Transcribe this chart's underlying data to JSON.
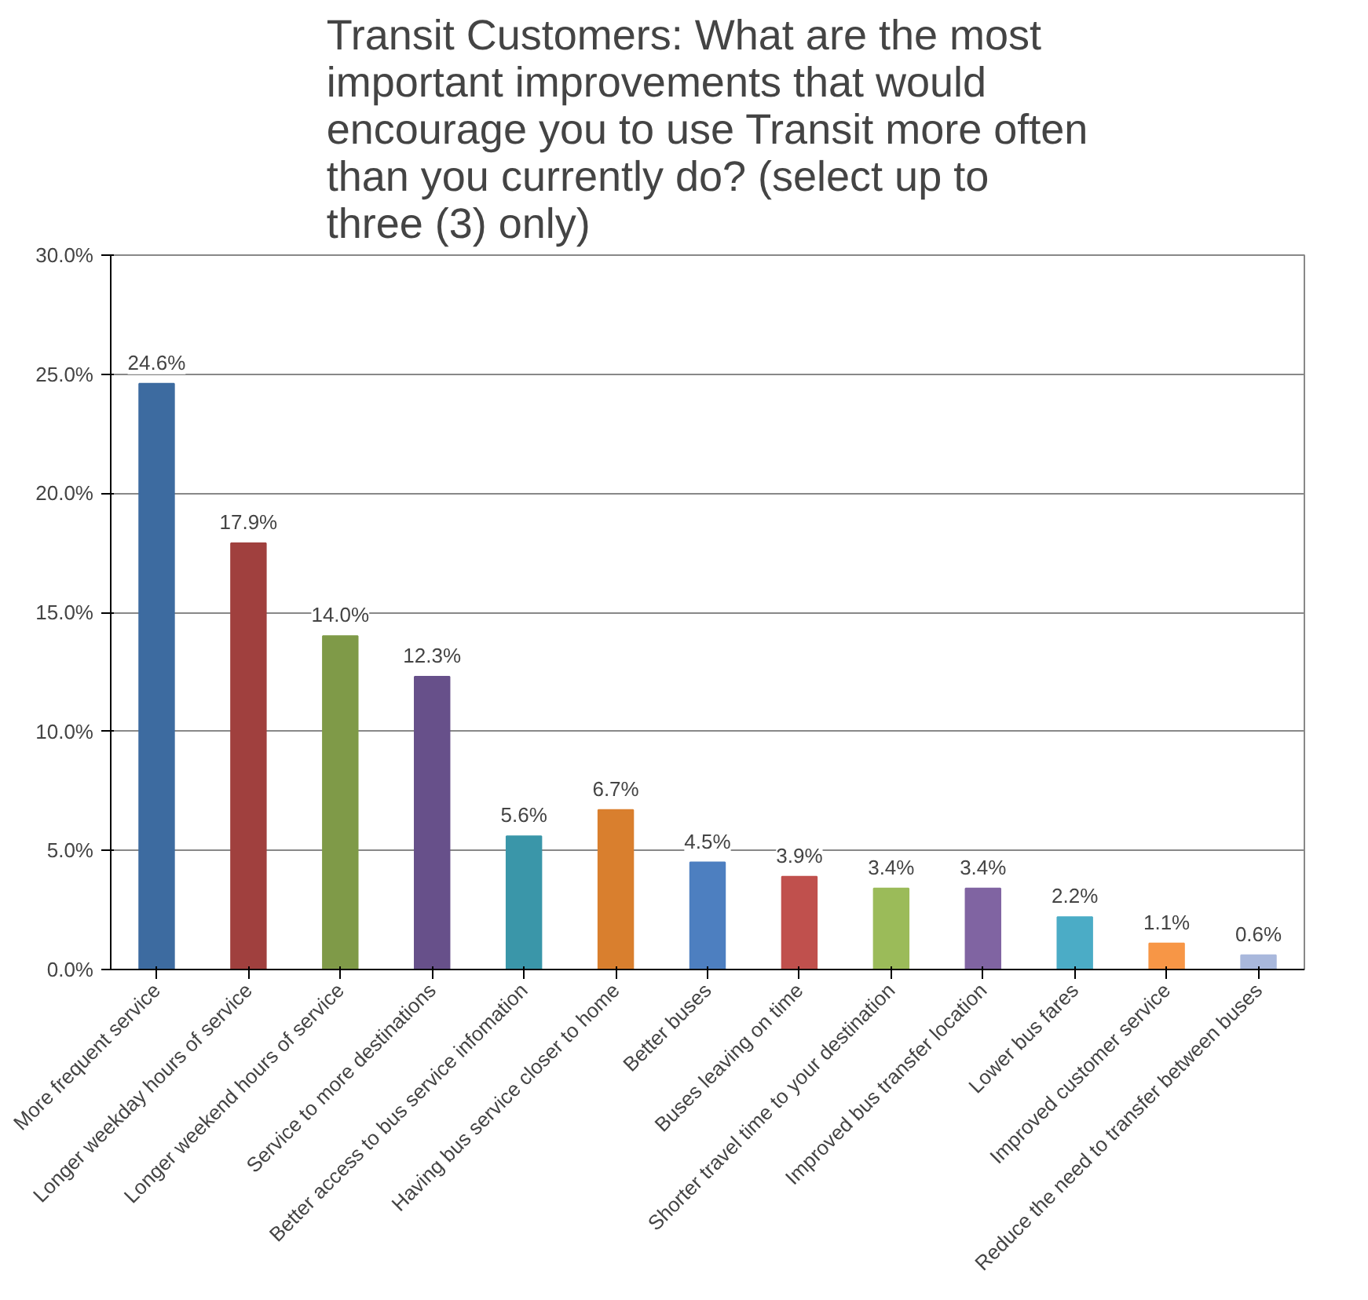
{
  "chart_data": {
    "type": "bar",
    "title": "Transit Customers: What are the most important improvements that would encourage you to use Transit more often than you currently do? (select up to three (3) only)",
    "categories": [
      "More frequent service",
      "Longer weekday hours of service",
      "Longer weekend hours of service",
      "Service to more destinations",
      "Better access to bus service infomation",
      "Having bus service closer to home",
      "Better buses",
      "Buses leaving on time",
      "Shorter travel time to your destination",
      "Improved bus transfer location",
      "Lower bus fares",
      "Improved customer service",
      "Reduce the need to transfer between buses"
    ],
    "values": [
      24.6,
      17.9,
      14.0,
      12.3,
      5.6,
      6.7,
      4.5,
      3.9,
      3.4,
      3.4,
      2.2,
      1.1,
      0.6
    ],
    "value_labels": [
      "24.6%",
      "17.9%",
      "14.0%",
      "12.3%",
      "5.6%",
      "6.7%",
      "4.5%",
      "3.9%",
      "3.4%",
      "3.4%",
      "2.2%",
      "1.1%",
      "0.6%"
    ],
    "colors": [
      "#3d6ba0",
      "#a0403e",
      "#7f9a48",
      "#67508a",
      "#3a96a9",
      "#d97f2e",
      "#4d7fc0",
      "#c0504d",
      "#9bbb59",
      "#8064a2",
      "#4bacc6",
      "#f79646",
      "#a9b8dc"
    ],
    "ylim": [
      0,
      30
    ],
    "yticks": [
      {
        "value": 0,
        "label": "0.0%"
      },
      {
        "value": 5,
        "label": "5.0%"
      },
      {
        "value": 10,
        "label": "10.0%"
      },
      {
        "value": 15,
        "label": "15.0%"
      },
      {
        "value": 20,
        "label": "20.0%"
      },
      {
        "value": 25,
        "label": "25.0%"
      },
      {
        "value": 30,
        "label": "30.0%"
      }
    ],
    "grid": "y"
  }
}
